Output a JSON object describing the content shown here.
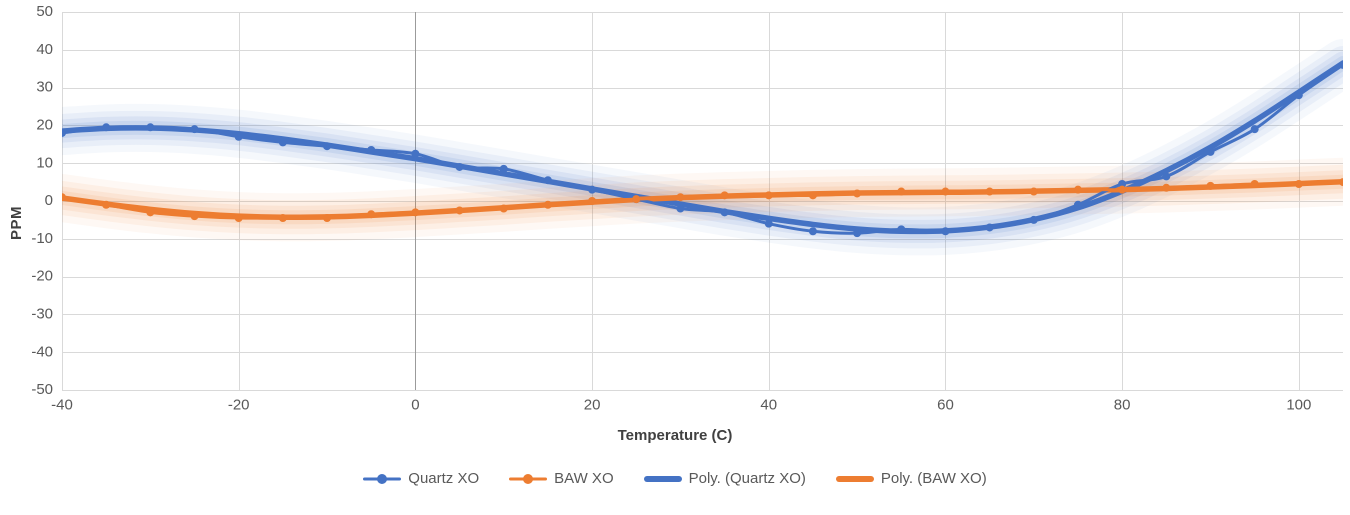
{
  "chart_data": {
    "type": "line",
    "title": "",
    "xlabel": "Temperature (C)",
    "ylabel": "PPM",
    "xlim": [
      -40,
      105
    ],
    "ylim": [
      -50,
      50
    ],
    "x_ticks": [
      -40,
      -20,
      0,
      20,
      40,
      60,
      80,
      100
    ],
    "y_ticks": [
      -50,
      -40,
      -30,
      -20,
      -10,
      0,
      10,
      20,
      30,
      40,
      50
    ],
    "grid": true,
    "grid_color": "#d9d9d9",
    "zero_line_color": "#9b9b9b",
    "tick_color": "#595959",
    "legend_position": "bottom",
    "x": [
      -40,
      -35,
      -30,
      -25,
      -20,
      -15,
      -10,
      -5,
      0,
      5,
      10,
      15,
      20,
      25,
      30,
      35,
      40,
      45,
      50,
      55,
      60,
      65,
      70,
      75,
      80,
      85,
      90,
      95,
      100,
      105
    ],
    "series": [
      {
        "name": "Quartz XO",
        "color": "#4472C4",
        "role": "data",
        "marker": "circle",
        "values": [
          18,
          19.5,
          19.5,
          19,
          17,
          15.5,
          14.5,
          13.5,
          12.5,
          9,
          8.5,
          5.5,
          3,
          0.5,
          -2,
          -3,
          -6,
          -8,
          -8.5,
          -7.5,
          -8,
          -7,
          -5,
          -1,
          4.5,
          6.5,
          13,
          19,
          28,
          36
        ]
      },
      {
        "name": "BAW XO",
        "color": "#ED7D31",
        "role": "data",
        "marker": "circle",
        "values": [
          1,
          -1,
          -3,
          -4,
          -4.5,
          -4.5,
          -4.5,
          -3.5,
          -3,
          -2.5,
          -2,
          -1,
          0,
          0.5,
          1,
          1.5,
          1.5,
          1.5,
          2,
          2.5,
          2.5,
          2.5,
          2.5,
          3,
          3,
          3.5,
          4,
          4.5,
          4.5,
          5
        ]
      },
      {
        "name": "Poly. (Quartz XO)",
        "color": "#4472C4",
        "role": "trendline",
        "glow": true,
        "values": [
          18.5,
          19.2,
          19.3,
          18.8,
          17.8,
          16.4,
          14.8,
          13,
          11.2,
          9.2,
          7.2,
          5.2,
          3.2,
          1.2,
          -0.8,
          -2.8,
          -4.6,
          -6.2,
          -7.4,
          -8,
          -7.9,
          -6.9,
          -4.9,
          -1.8,
          2.6,
          8,
          14.2,
          21.2,
          28.8,
          36.5
        ]
      },
      {
        "name": "Poly. (BAW XO)",
        "color": "#ED7D31",
        "role": "trendline",
        "glow": true,
        "values": [
          0.8,
          -0.8,
          -2.2,
          -3.3,
          -4,
          -4.3,
          -4.2,
          -3.8,
          -3.2,
          -2.5,
          -1.8,
          -1,
          -0.3,
          0.4,
          0.9,
          1.3,
          1.6,
          1.9,
          2.1,
          2.2,
          2.3,
          2.4,
          2.6,
          2.8,
          3,
          3.3,
          3.7,
          4.1,
          4.6,
          5.1
        ]
      }
    ]
  }
}
